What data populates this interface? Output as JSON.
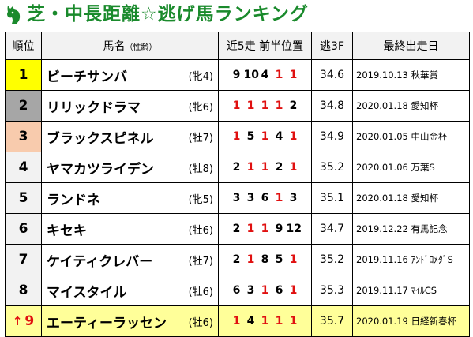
{
  "title": "芝・中長距離☆逃げ馬ランキング",
  "header": {
    "rank": "順位",
    "name": "馬名",
    "name_sub": "（性齢）",
    "positions": "近5走 前半位置",
    "last3f": "逃3F",
    "last_race": "最終出走日"
  },
  "rows": [
    {
      "rank": "1",
      "arrow": "",
      "name": "ビーチサンバ",
      "sex_age": "(牝4)",
      "positions": [
        "9",
        "10",
        "4",
        "1",
        "1"
      ],
      "reds": [
        false,
        false,
        false,
        true,
        true
      ],
      "f3": "34.6",
      "date": "2019.10.13 秋華賞"
    },
    {
      "rank": "2",
      "arrow": "",
      "name": "リリックドラマ",
      "sex_age": "(牝6)",
      "positions": [
        "1",
        "1",
        "1",
        "1",
        "2"
      ],
      "reds": [
        true,
        true,
        true,
        true,
        false
      ],
      "f3": "34.8",
      "date": "2020.01.18 愛知杯"
    },
    {
      "rank": "3",
      "arrow": "",
      "name": "ブラックスピネル",
      "sex_age": "(牡7)",
      "positions": [
        "1",
        "5",
        "1",
        "4",
        "1"
      ],
      "reds": [
        true,
        false,
        true,
        false,
        true
      ],
      "f3": "34.9",
      "date": "2020.01.05 中山金杯"
    },
    {
      "rank": "4",
      "arrow": "",
      "name": "ヤマカツライデン",
      "sex_age": "(牡8)",
      "positions": [
        "2",
        "1",
        "1",
        "2",
        "1"
      ],
      "reds": [
        false,
        true,
        true,
        false,
        true
      ],
      "f3": "35.2",
      "date": "2020.01.06 万葉S"
    },
    {
      "rank": "5",
      "arrow": "",
      "name": "ランドネ",
      "sex_age": "(牝5)",
      "positions": [
        "3",
        "3",
        "6",
        "1",
        "3"
      ],
      "reds": [
        false,
        false,
        false,
        true,
        false
      ],
      "f3": "35.1",
      "date": "2020.01.18 愛知杯"
    },
    {
      "rank": "6",
      "arrow": "",
      "name": "キセキ",
      "sex_age": "(牡6)",
      "positions": [
        "2",
        "1",
        "1",
        "9",
        "12"
      ],
      "reds": [
        false,
        true,
        true,
        false,
        false
      ],
      "f3": "34.7",
      "date": "2019.12.22 有馬記念"
    },
    {
      "rank": "7",
      "arrow": "",
      "name": "ケイティクレバー",
      "sex_age": "(牡7)",
      "positions": [
        "2",
        "1",
        "8",
        "5",
        "1"
      ],
      "reds": [
        false,
        true,
        false,
        false,
        true
      ],
      "f3": "35.2",
      "date": "2019.11.16 ｱﾝﾄﾞﾛﾒﾀﾞS"
    },
    {
      "rank": "8",
      "arrow": "",
      "name": "マイスタイル",
      "sex_age": "(牡6)",
      "positions": [
        "6",
        "3",
        "1",
        "6",
        "1"
      ],
      "reds": [
        false,
        false,
        true,
        false,
        true
      ],
      "f3": "35.3",
      "date": "2019.11.17 ﾏｲﾙCS"
    },
    {
      "rank": "9",
      "arrow": "↑",
      "name": "エーティーラッセン",
      "sex_age": "(牡6)",
      "positions": [
        "1",
        "4",
        "1",
        "1",
        "1"
      ],
      "reds": [
        true,
        false,
        true,
        true,
        true
      ],
      "f3": "35.7",
      "date": "2020.01.19 日経新春杯"
    }
  ],
  "colors": {
    "title": "#1a8a2c",
    "red": "#e01010",
    "rank1": "#ffff00",
    "rank2": "#a6a6a6",
    "rank3": "#f8cbad",
    "highlight_row": "#ffff99"
  },
  "icons": {
    "title_icon": "horse-head-icon"
  }
}
